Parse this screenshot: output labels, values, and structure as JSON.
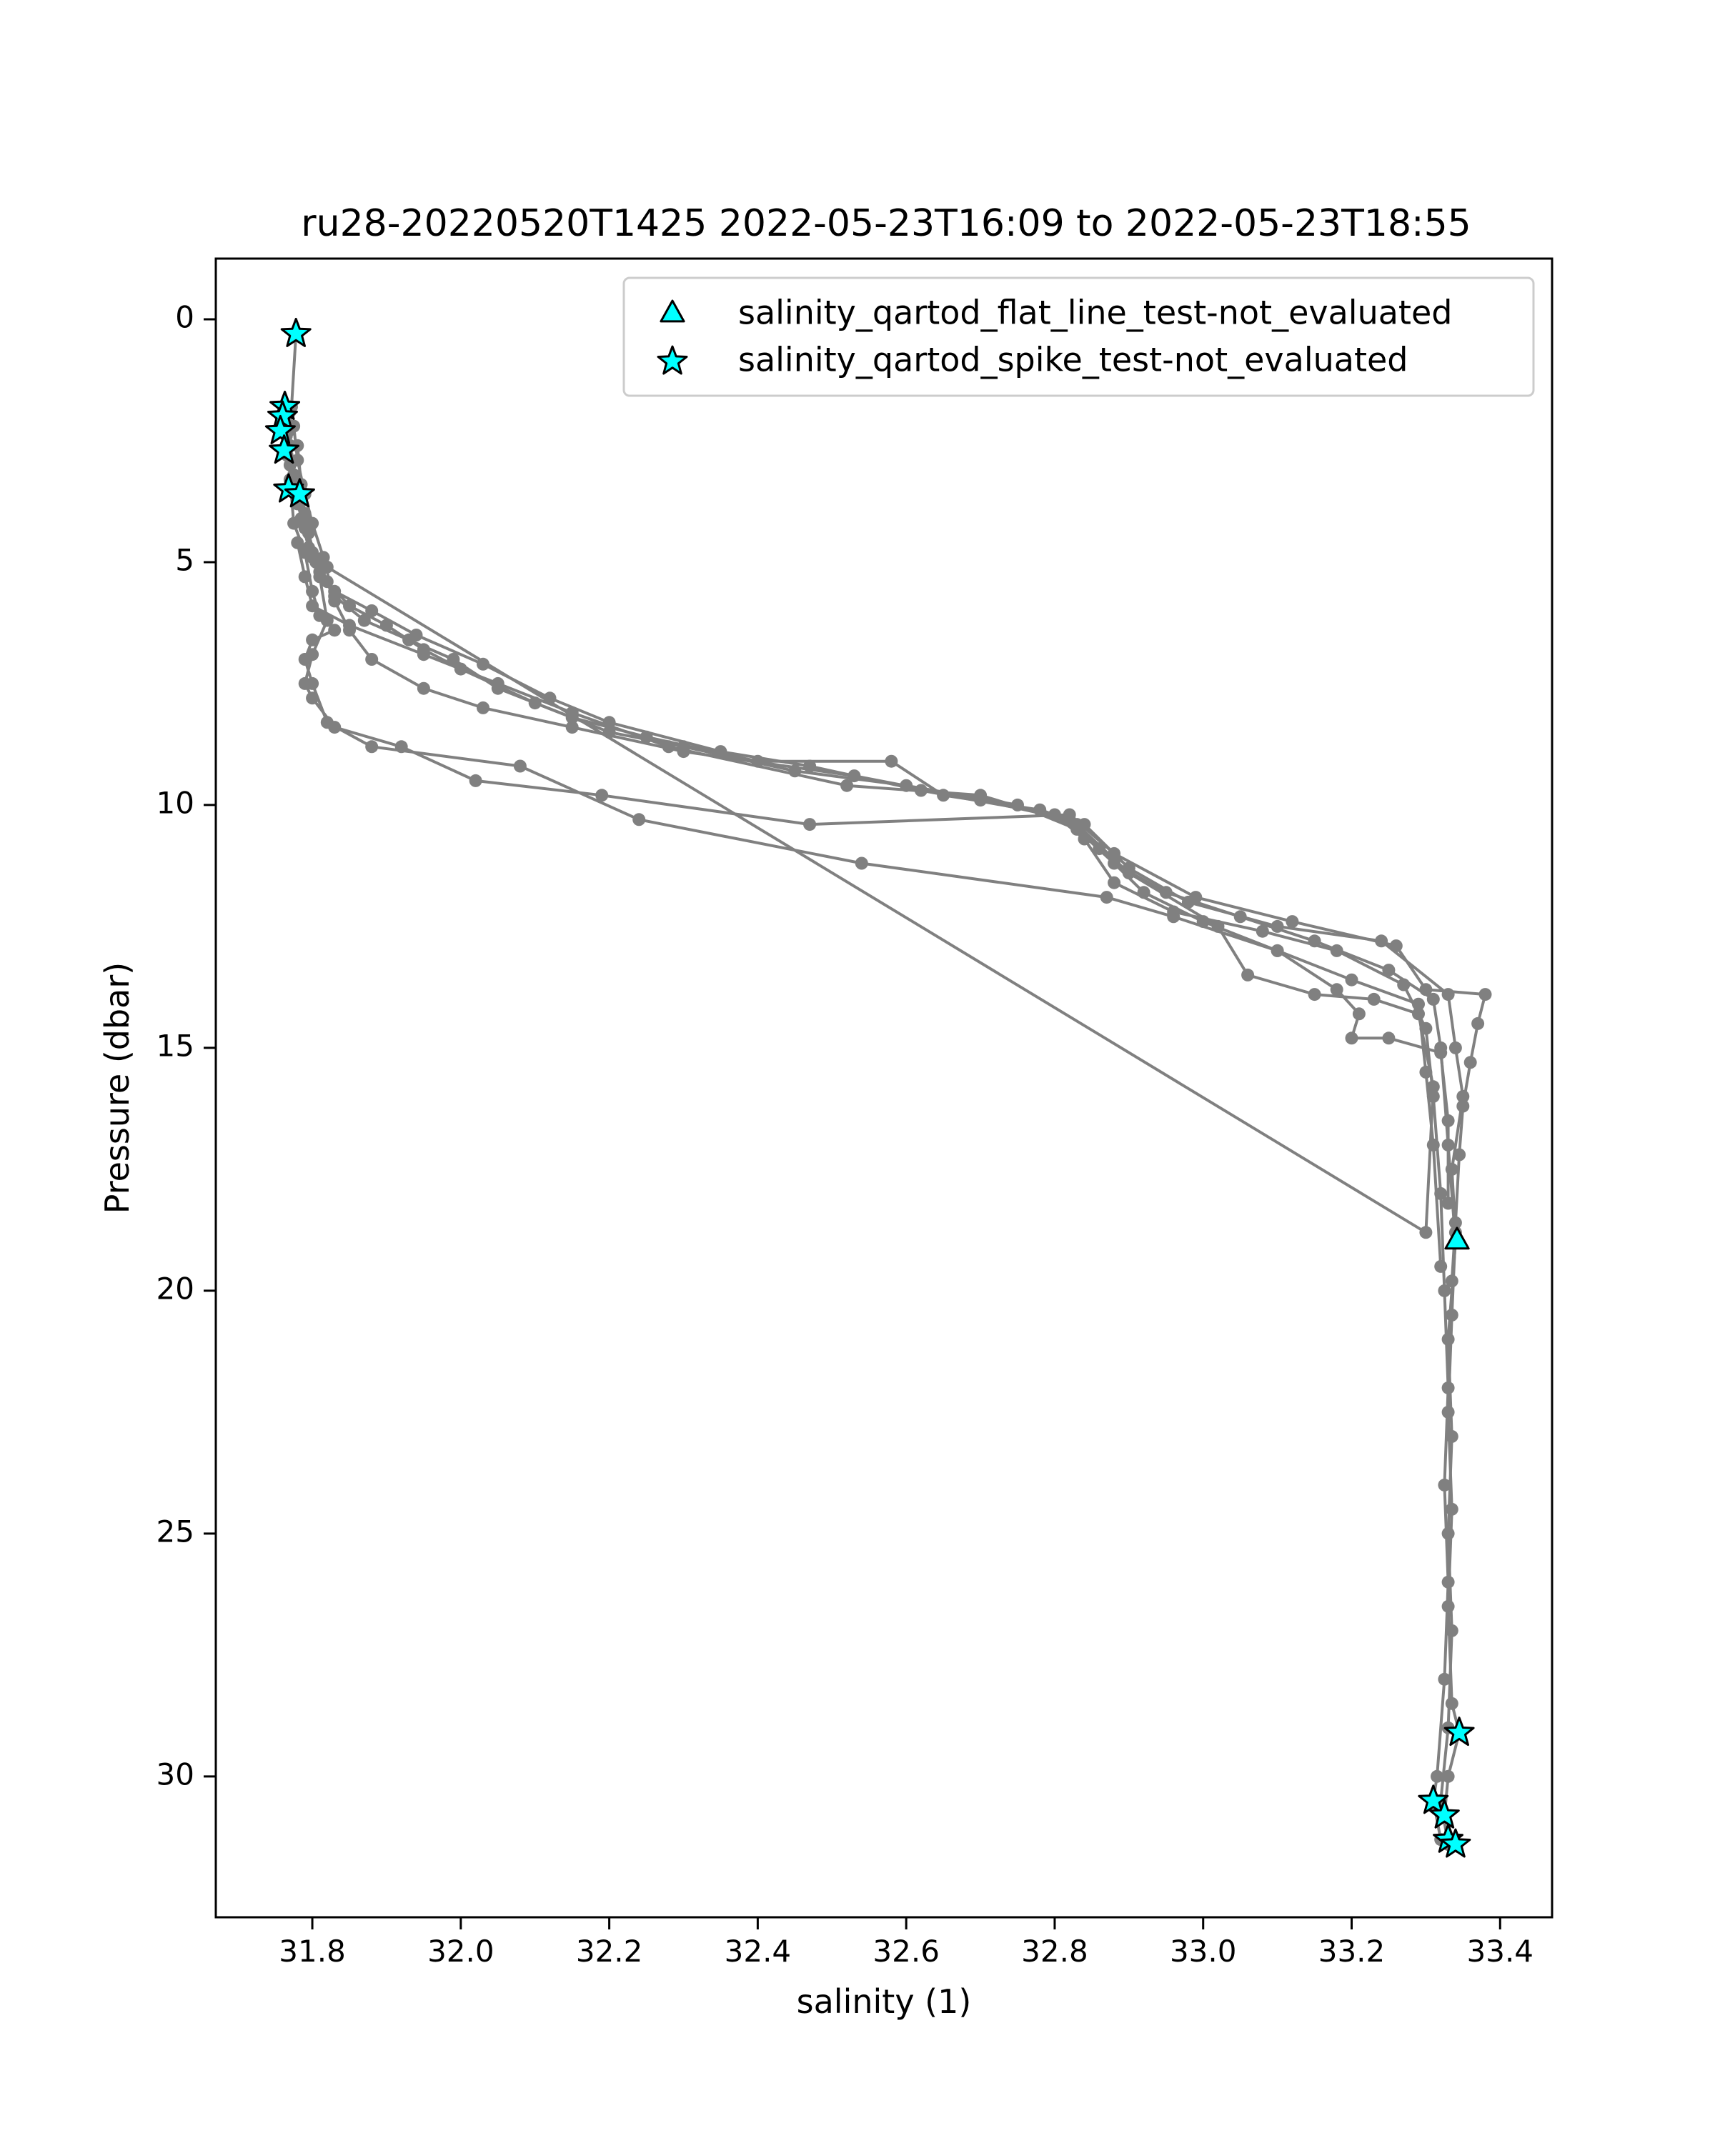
{
  "chart_data": {
    "type": "scatter",
    "title": "ru28-20220520T1425 2022-05-23T16:09 to 2022-05-23T18:55",
    "xlabel": "salinity (1)",
    "ylabel": "Pressure (dbar)",
    "xlim": [
      31.67,
      33.47
    ],
    "ylim": [
      32.9,
      -1.25
    ],
    "y_inverted": true,
    "xticks": [
      "31.8",
      "32.0",
      "32.2",
      "32.4",
      "32.6",
      "32.8",
      "33.0",
      "33.2",
      "33.4"
    ],
    "yticks": [
      "0",
      "5",
      "10",
      "15",
      "20",
      "25",
      "30"
    ],
    "grid": false,
    "legend_position": "upper right",
    "line_color": "#808080",
    "marker_color": "#00ffff",
    "series": [
      {
        "kind": "line",
        "points": [
          [
            31.778,
            0.3
          ],
          [
            31.772,
            1.8
          ],
          [
            31.768,
            2.3
          ],
          [
            31.766,
            2.8
          ],
          [
            31.775,
            3.3
          ],
          [
            31.78,
            3.8
          ],
          [
            31.79,
            4.3
          ],
          [
            31.8,
            4.9
          ],
          [
            31.82,
            5.4
          ],
          [
            31.85,
            5.9
          ],
          [
            31.9,
            6.3
          ],
          [
            31.95,
            6.8
          ],
          [
            32.0,
            7.2
          ],
          [
            32.1,
            7.9
          ],
          [
            32.2,
            8.5
          ],
          [
            32.3,
            8.8
          ],
          [
            32.45,
            9.3
          ],
          [
            32.6,
            9.6
          ],
          [
            32.75,
            10.0
          ],
          [
            32.83,
            10.5
          ],
          [
            32.88,
            11.2
          ],
          [
            32.95,
            11.8
          ],
          [
            33.05,
            12.3
          ],
          [
            33.15,
            12.8
          ],
          [
            33.25,
            13.4
          ],
          [
            33.31,
            14.0
          ],
          [
            33.32,
            15.0
          ],
          [
            33.33,
            17.0
          ],
          [
            33.34,
            19.0
          ],
          [
            33.33,
            21.0
          ],
          [
            33.335,
            23.0
          ],
          [
            33.33,
            25.0
          ],
          [
            33.335,
            27.0
          ],
          [
            33.33,
            29.0
          ],
          [
            33.32,
            30.5
          ],
          [
            33.33,
            31.4
          ]
        ]
      },
      {
        "kind": "line",
        "points": [
          [
            31.77,
            1.9
          ],
          [
            31.765,
            2.4
          ],
          [
            31.77,
            3.0
          ],
          [
            31.778,
            3.5
          ],
          [
            31.785,
            4.1
          ],
          [
            31.795,
            4.7
          ],
          [
            31.81,
            5.2
          ],
          [
            31.83,
            5.7
          ],
          [
            31.87,
            6.2
          ],
          [
            31.93,
            6.6
          ],
          [
            31.99,
            7.0
          ],
          [
            32.05,
            7.6
          ],
          [
            32.15,
            8.2
          ],
          [
            32.25,
            8.6
          ],
          [
            32.4,
            9.1
          ],
          [
            32.58,
            9.1
          ],
          [
            32.65,
            9.8
          ],
          [
            32.78,
            10.1
          ],
          [
            32.84,
            10.4
          ],
          [
            32.9,
            11.3
          ],
          [
            32.98,
            12.0
          ],
          [
            33.1,
            12.5
          ],
          [
            33.24,
            12.8
          ],
          [
            33.33,
            13.9
          ],
          [
            33.34,
            15.0
          ],
          [
            33.35,
            16.0
          ],
          [
            33.335,
            17.5
          ],
          [
            33.34,
            18.8
          ],
          [
            33.335,
            20.5
          ],
          [
            33.33,
            22.5
          ],
          [
            33.335,
            24.5
          ],
          [
            33.33,
            26.5
          ],
          [
            33.335,
            28.5
          ],
          [
            33.345,
            29.1
          ],
          [
            33.33,
            30.0
          ],
          [
            33.325,
            30.8
          ],
          [
            33.34,
            31.4
          ]
        ]
      },
      {
        "kind": "line",
        "points": [
          [
            31.765,
            2.0
          ],
          [
            31.77,
            2.6
          ],
          [
            31.775,
            3.2
          ],
          [
            31.785,
            3.7
          ],
          [
            31.795,
            4.4
          ],
          [
            31.805,
            5.0
          ],
          [
            31.83,
            5.6
          ],
          [
            31.88,
            6.0
          ],
          [
            31.94,
            6.5
          ],
          [
            32.03,
            7.1
          ],
          [
            32.12,
            7.8
          ],
          [
            32.2,
            8.3
          ],
          [
            32.35,
            8.9
          ],
          [
            32.47,
            9.2
          ],
          [
            32.62,
            9.7
          ],
          [
            32.8,
            10.2
          ],
          [
            32.84,
            10.7
          ],
          [
            32.88,
            11.6
          ],
          [
            32.96,
            12.2
          ],
          [
            33.08,
            12.6
          ],
          [
            33.18,
            13.0
          ],
          [
            33.27,
            13.7
          ],
          [
            33.3,
            14.6
          ],
          [
            33.31,
            16.0
          ],
          [
            33.32,
            18.0
          ],
          [
            33.325,
            20.0
          ],
          [
            33.33,
            22.0
          ],
          [
            33.325,
            24.0
          ],
          [
            33.33,
            26.0
          ],
          [
            33.325,
            28.0
          ],
          [
            33.315,
            30.0
          ],
          [
            33.31,
            30.5
          ],
          [
            33.32,
            31.3
          ]
        ]
      },
      {
        "kind": "line",
        "points": [
          [
            31.775,
            2.2
          ],
          [
            31.78,
            2.9
          ],
          [
            31.79,
            3.6
          ],
          [
            31.8,
            4.2
          ],
          [
            31.815,
            4.9
          ],
          [
            31.83,
            5.8
          ],
          [
            31.85,
            6.4
          ],
          [
            31.88,
            7.0
          ],
          [
            31.95,
            7.6
          ],
          [
            32.03,
            8.0
          ],
          [
            32.15,
            8.4
          ],
          [
            32.3,
            8.9
          ],
          [
            32.53,
            9.4
          ],
          [
            32.7,
            9.9
          ],
          [
            32.82,
            10.3
          ],
          [
            32.86,
            10.9
          ],
          [
            32.92,
            11.8
          ],
          [
            33.0,
            12.4
          ],
          [
            33.1,
            13.0
          ],
          [
            33.2,
            13.6
          ],
          [
            33.29,
            14.1
          ],
          [
            33.3,
            15.5
          ],
          [
            33.31,
            17.0
          ],
          [
            33.32,
            19.5
          ]
        ]
      },
      {
        "kind": "line",
        "points": [
          [
            31.78,
            2.6
          ],
          [
            31.785,
            3.4
          ],
          [
            31.79,
            4.0
          ],
          [
            31.8,
            4.8
          ],
          [
            31.81,
            5.3
          ],
          [
            31.82,
            6.2
          ],
          [
            31.8,
            6.9
          ],
          [
            31.79,
            7.5
          ],
          [
            31.8,
            7.8
          ],
          [
            31.83,
            8.4
          ],
          [
            31.92,
            8.8
          ],
          [
            32.02,
            9.5
          ],
          [
            32.19,
            9.8
          ],
          [
            32.47,
            10.4
          ],
          [
            32.82,
            10.2
          ],
          [
            32.88,
            11.0
          ],
          [
            32.99,
            11.9
          ],
          [
            33.12,
            12.4
          ],
          [
            33.26,
            12.9
          ],
          [
            33.3,
            13.8
          ],
          [
            33.38,
            13.9
          ],
          [
            33.37,
            14.5
          ],
          [
            33.36,
            15.3
          ],
          [
            33.35,
            16.2
          ],
          [
            33.345,
            17.2
          ],
          [
            33.34,
            18.6
          ],
          [
            33.335,
            19.8
          ]
        ]
      },
      {
        "kind": "line",
        "points": [
          [
            31.77,
            3.3
          ],
          [
            31.775,
            4.2
          ],
          [
            31.79,
            4.8
          ],
          [
            31.8,
            5.6
          ],
          [
            31.81,
            6.1
          ],
          [
            31.83,
            6.4
          ],
          [
            31.8,
            6.6
          ],
          [
            31.79,
            7.0
          ],
          [
            31.8,
            7.5
          ],
          [
            31.82,
            8.3
          ],
          [
            31.88,
            8.8
          ],
          [
            32.08,
            9.2
          ],
          [
            32.24,
            10.3
          ],
          [
            32.54,
            11.2
          ],
          [
            32.87,
            11.9
          ],
          [
            32.96,
            12.3
          ],
          [
            33.1,
            13.0
          ],
          [
            33.18,
            13.8
          ],
          [
            33.21,
            14.3
          ],
          [
            33.2,
            14.8
          ],
          [
            33.25,
            14.8
          ],
          [
            33.32,
            15.1
          ],
          [
            33.33,
            16.5
          ],
          [
            33.33,
            18.2
          ]
        ]
      },
      {
        "kind": "line",
        "points": [
          [
            31.78,
            4.6
          ],
          [
            31.79,
            5.3
          ],
          [
            31.8,
            5.9
          ],
          [
            31.85,
            6.3
          ],
          [
            31.95,
            6.9
          ],
          [
            32.05,
            7.5
          ],
          [
            32.15,
            8.1
          ],
          [
            32.28,
            8.8
          ],
          [
            32.52,
            9.6
          ],
          [
            32.7,
            9.8
          ],
          [
            32.83,
            10.4
          ],
          [
            32.9,
            11.4
          ],
          [
            33.02,
            12.5
          ],
          [
            33.06,
            13.5
          ],
          [
            33.15,
            13.9
          ],
          [
            33.23,
            14.0
          ],
          [
            33.29,
            14.3
          ],
          [
            33.31,
            15.8
          ],
          [
            33.3,
            18.8
          ],
          [
            31.82,
            5.1
          ]
        ]
      }
    ],
    "legend": [
      {
        "marker": "triangle",
        "label": "salinity_qartod_flat_line_test-not_evaluated"
      },
      {
        "marker": "star",
        "label": "salinity_qartod_spike_test-not_evaluated"
      }
    ],
    "flagged_points": {
      "salinity_qartod_flat_line_test-not_evaluated": [
        [
          33.342,
          19.0
        ]
      ],
      "salinity_qartod_spike_test-not_evaluated": [
        [
          31.778,
          0.3
        ],
        [
          31.763,
          1.8
        ],
        [
          31.76,
          2.0
        ],
        [
          31.757,
          2.3
        ],
        [
          31.762,
          2.7
        ],
        [
          31.768,
          3.5
        ],
        [
          31.783,
          3.6
        ],
        [
          33.345,
          29.1
        ],
        [
          33.31,
          30.5
        ],
        [
          33.325,
          30.8
        ],
        [
          33.33,
          31.3
        ],
        [
          33.34,
          31.4
        ]
      ]
    }
  }
}
